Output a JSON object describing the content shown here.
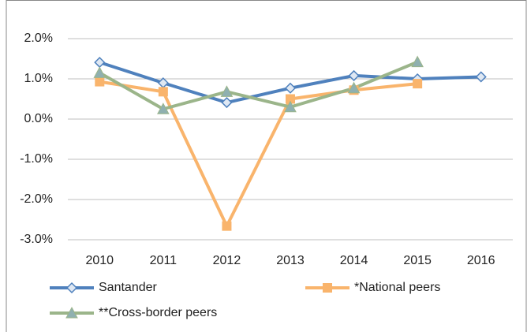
{
  "chart_data": {
    "type": "line",
    "categories": [
      "2010",
      "2011",
      "2012",
      "2013",
      "2014",
      "2015",
      "2016"
    ],
    "series": [
      {
        "name": "Santander",
        "color": "#4f81bd",
        "marker": "diamond",
        "values": [
          1.41,
          0.9,
          0.41,
          0.77,
          1.08,
          1.0,
          1.05
        ]
      },
      {
        "name": "*National peers",
        "color": "#f9b46c",
        "marker": "square",
        "values": [
          0.93,
          0.68,
          -2.66,
          0.5,
          0.72,
          0.88,
          null
        ]
      },
      {
        "name": "**Cross-border peers",
        "color": "#9bb58a",
        "marker": "triangle",
        "values": [
          1.15,
          0.25,
          0.68,
          0.3,
          0.77,
          1.42,
          null
        ]
      }
    ],
    "ylim": [
      -3,
      2
    ],
    "yticks": [
      {
        "value": -3,
        "label": "-3.0%"
      },
      {
        "value": -2,
        "label": "-2.0%"
      },
      {
        "value": -1,
        "label": "-1.0%"
      },
      {
        "value": 0,
        "label": "0.0%"
      },
      {
        "value": 1,
        "label": "1.0%"
      },
      {
        "value": 2,
        "label": "2.0%"
      }
    ],
    "grid": true,
    "legend": "bottom"
  }
}
